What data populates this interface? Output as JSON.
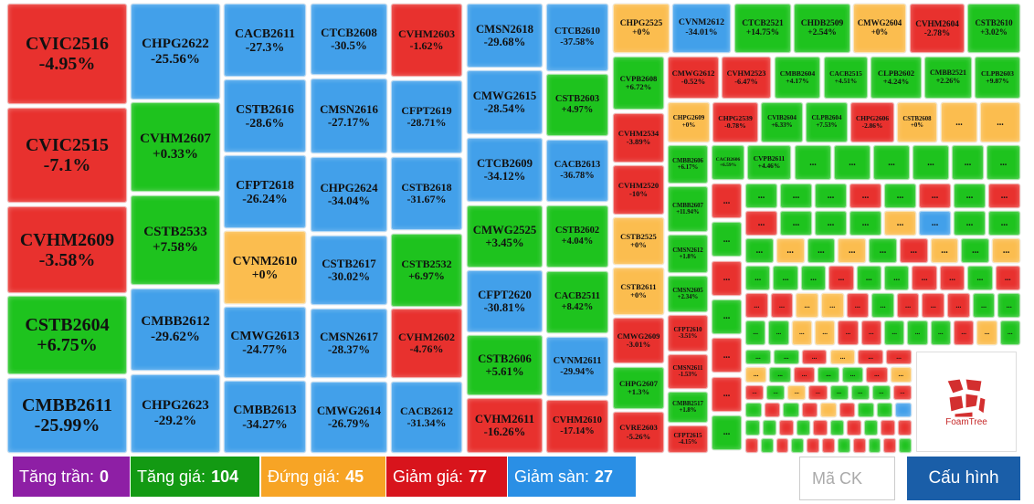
{
  "palette": {
    "r": "#e8312e",
    "g": "#1ec31e",
    "b": "#42a0ea",
    "o": "#fbbd4f"
  },
  "ellipsis": "...",
  "tiles": [
    {
      "code": "CVIC2516",
      "change": "-4.95%",
      "color": "r"
    },
    {
      "code": "CVIC2515",
      "change": "-7.1%",
      "color": "r"
    },
    {
      "code": "CVHM2609",
      "change": "-3.58%",
      "color": "r"
    },
    {
      "code": "CSTB2604",
      "change": "+6.75%",
      "color": "g"
    },
    {
      "code": "CMBB2611",
      "change": "-25.99%",
      "color": "b"
    },
    {
      "code": "CHPG2622",
      "change": "-25.56%",
      "color": "b"
    },
    {
      "code": "CVHM2607",
      "change": "+0.33%",
      "color": "g"
    },
    {
      "code": "CSTB2533",
      "change": "+7.58%",
      "color": "g"
    },
    {
      "code": "CMBB2612",
      "change": "-29.62%",
      "color": "b"
    },
    {
      "code": "CHPG2623",
      "change": "-29.2%",
      "color": "b"
    },
    {
      "code": "CACB2611",
      "change": "-27.3%",
      "color": "b"
    },
    {
      "code": "CSTB2616",
      "change": "-28.6%",
      "color": "b"
    },
    {
      "code": "CFPT2618",
      "change": "-26.24%",
      "color": "b"
    },
    {
      "code": "CVNM2610",
      "change": "+0%",
      "color": "o"
    },
    {
      "code": "CMWG2613",
      "change": "-24.77%",
      "color": "b"
    },
    {
      "code": "CMBB2613",
      "change": "-34.27%",
      "color": "b"
    },
    {
      "code": "CTCB2608",
      "change": "-30.5%",
      "color": "b"
    },
    {
      "code": "CMSN2616",
      "change": "-27.17%",
      "color": "b"
    },
    {
      "code": "CHPG2624",
      "change": "-34.04%",
      "color": "b"
    },
    {
      "code": "CSTB2617",
      "change": "-30.02%",
      "color": "b"
    },
    {
      "code": "CMSN2617",
      "change": "-28.37%",
      "color": "b"
    },
    {
      "code": "CMWG2614",
      "change": "-26.79%",
      "color": "b"
    },
    {
      "code": "CVHM2603",
      "change": "-1.62%",
      "color": "r"
    },
    {
      "code": "CFPT2619",
      "change": "-28.71%",
      "color": "b"
    },
    {
      "code": "CSTB2618",
      "change": "-31.67%",
      "color": "b"
    },
    {
      "code": "CSTB2532",
      "change": "+6.97%",
      "color": "g"
    },
    {
      "code": "CVHM2602",
      "change": "-4.76%",
      "color": "r"
    },
    {
      "code": "CACB2612",
      "change": "-31.34%",
      "color": "b"
    },
    {
      "code": "CMSN2618",
      "change": "-29.68%",
      "color": "b"
    },
    {
      "code": "CMWG2615",
      "change": "-28.54%",
      "color": "b"
    },
    {
      "code": "CTCB2609",
      "change": "-34.12%",
      "color": "b"
    },
    {
      "code": "CMWG2525",
      "change": "+3.45%",
      "color": "g"
    },
    {
      "code": "CFPT2620",
      "change": "-30.81%",
      "color": "b"
    },
    {
      "code": "CSTB2606",
      "change": "+5.61%",
      "color": "g"
    },
    {
      "code": "CVHM2611",
      "change": "-16.26%",
      "color": "r"
    },
    {
      "code": "CTCB2610",
      "change": "-37.58%",
      "color": "b"
    },
    {
      "code": "CSTB2603",
      "change": "+4.97%",
      "color": "g"
    },
    {
      "code": "CACB2613",
      "change": "-36.78%",
      "color": "b"
    },
    {
      "code": "CSTB2602",
      "change": "+4.04%",
      "color": "g"
    },
    {
      "code": "CACB2511",
      "change": "+8.42%",
      "color": "g"
    },
    {
      "code": "CVNM2611",
      "change": "-29.94%",
      "color": "b"
    },
    {
      "code": "CVHM2610",
      "change": "-17.14%",
      "color": "r"
    },
    {
      "code": "CHPG2525",
      "change": "+0%",
      "color": "o"
    },
    {
      "code": "CVNM2612",
      "change": "-34.01%",
      "color": "b"
    },
    {
      "code": "CTCB2521",
      "change": "+14.75%",
      "color": "g"
    },
    {
      "code": "CHDB2509",
      "change": "+2.54%",
      "color": "g"
    },
    {
      "code": "CMWG2604",
      "change": "+0%",
      "color": "o"
    },
    {
      "code": "CVHM2604",
      "change": "-2.78%",
      "color": "r"
    },
    {
      "code": "CSTB2610",
      "change": "+3.02%",
      "color": "g"
    },
    {
      "code": "CVPB2608",
      "change": "+6.72%",
      "color": "g"
    },
    {
      "code": "CVHM2534",
      "change": "-3.89%",
      "color": "r"
    },
    {
      "code": "CVHM2520",
      "change": "-10%",
      "color": "r"
    },
    {
      "code": "CSTB2525",
      "change": "+0%",
      "color": "o"
    },
    {
      "code": "CSTB2611",
      "change": "+0%",
      "color": "o"
    },
    {
      "code": "CMWG2609",
      "change": "-3.01%",
      "color": "r"
    },
    {
      "code": "CHPG2607",
      "change": "+1.3%",
      "color": "g"
    },
    {
      "code": "CVRE2603",
      "change": "-5.26%",
      "color": "r"
    },
    {
      "code": "CMWG2612",
      "change": "-0.52%",
      "color": "r"
    },
    {
      "code": "CVHM2523",
      "change": "-6.47%",
      "color": "r"
    },
    {
      "code": "CMBB2604",
      "change": "+4.17%",
      "color": "g"
    },
    {
      "code": "CACB2515",
      "change": "+4.51%",
      "color": "g"
    },
    {
      "code": "CLPB2602",
      "change": "+4.24%",
      "color": "g"
    },
    {
      "code": "CMBB2521",
      "change": "+2.26%",
      "color": "g"
    },
    {
      "code": "CLPB2603",
      "change": "+9.87%",
      "color": "g"
    },
    {
      "code": "CHPG2609",
      "change": "+0%",
      "color": "o"
    },
    {
      "code": "CHPG2539",
      "change": "-0.78%",
      "color": "r"
    },
    {
      "code": "CVIB2604",
      "change": "+6.33%",
      "color": "g"
    },
    {
      "code": "CLPB2604",
      "change": "+7.53%",
      "color": "g"
    },
    {
      "code": "CHPG2606",
      "change": "-2.86%",
      "color": "r"
    },
    {
      "code": "CSTB2608",
      "change": "+0%",
      "color": "o"
    },
    {
      "code": "CMBB2606",
      "change": "+6.17%",
      "color": "g"
    },
    {
      "code": "CMBB2607",
      "change": "+11.94%",
      "color": "g"
    },
    {
      "code": "CMSN2612",
      "change": "+1.8%",
      "color": "g"
    },
    {
      "code": "CMSN2605",
      "change": "+2.34%",
      "color": "g"
    },
    {
      "code": "CFPT2610",
      "change": "-3.51%",
      "color": "r"
    },
    {
      "code": "CMSN2611",
      "change": "-1.53%",
      "color": "r"
    },
    {
      "code": "CMBB2517",
      "change": "+1.8%",
      "color": "g"
    },
    {
      "code": "CFPT2615",
      "change": "-4.15%",
      "color": "r"
    },
    {
      "code": "CACB2606",
      "change": "+6.59%",
      "color": "g"
    },
    {
      "code": "CVPB2611",
      "change": "+4.46%",
      "color": "g"
    }
  ],
  "small_tiles": [
    "o",
    "o",
    "g",
    "g",
    "g",
    "g",
    "g",
    "g",
    "r",
    "g",
    "r",
    "g",
    "r",
    "r",
    "g",
    "g",
    "g",
    "g",
    "r",
    "g",
    "r",
    "g",
    "r",
    "r",
    "g",
    "g",
    "g",
    "o",
    "b",
    "g",
    "g",
    "g",
    "o",
    "g",
    "o",
    "g",
    "r",
    "o",
    "g",
    "o",
    "g",
    "g",
    "g",
    "r",
    "g",
    "g",
    "r",
    "r",
    "g",
    "r",
    "r",
    "r",
    "o",
    "o",
    "r",
    "g",
    "r",
    "r",
    "r",
    "g",
    "g",
    "g",
    "g",
    "o",
    "o",
    "r",
    "r",
    "g",
    "g",
    "g",
    "r",
    "o",
    "g",
    "g",
    "g",
    "r",
    "o",
    "r",
    "r",
    "o",
    "g",
    "r",
    "g",
    "g",
    "r",
    "o",
    "r",
    "g",
    "o",
    "r",
    "g",
    "g",
    "g",
    "r",
    "g",
    "r",
    "g",
    "r",
    "o",
    "r",
    "g",
    "g",
    "b",
    "g",
    "g",
    "r",
    "g",
    "r",
    "g",
    "r",
    "g",
    "r",
    "r",
    "r",
    "g",
    "r",
    "g",
    "r",
    "r",
    "g",
    "r",
    "g",
    "r",
    "g"
  ],
  "logo": "FoamTree",
  "legend": [
    {
      "label": "Tăng trần:",
      "count": 0,
      "color": "#8e1fa5"
    },
    {
      "label": "Tăng giá:",
      "count": 104,
      "color": "#139a13"
    },
    {
      "label": "Đứng giá:",
      "count": 45,
      "color": "#f7a425"
    },
    {
      "label": "Giảm giá:",
      "count": 77,
      "color": "#d8141c"
    },
    {
      "label": "Giảm sàn:",
      "count": 27,
      "color": "#2a8fe5"
    }
  ],
  "search_placeholder": "Mã CK",
  "config_button": "Cấu hình"
}
